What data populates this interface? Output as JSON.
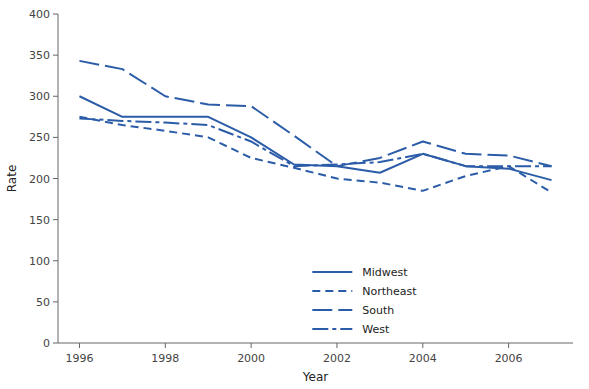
{
  "chart_data": {
    "type": "line",
    "x": [
      1996,
      1997,
      1998,
      1999,
      2000,
      2001,
      2002,
      2003,
      2004,
      2005,
      2006,
      2007
    ],
    "series": [
      {
        "name": "Midwest",
        "color": "#2b5ca8",
        "line_style": "solid",
        "values": [
          300,
          275,
          275,
          275,
          250,
          217,
          215,
          207,
          230,
          215,
          212,
          198
        ]
      },
      {
        "name": "Northeast",
        "color": "#2b5ca8",
        "line_style": "dashed",
        "values": [
          275,
          265,
          258,
          250,
          225,
          213,
          200,
          195,
          185,
          203,
          215,
          183
        ]
      },
      {
        "name": "South",
        "color": "#2b5ca8",
        "line_style": "long-dashed",
        "values": [
          343,
          333,
          300,
          290,
          288,
          252,
          215,
          225,
          245,
          230,
          228,
          215
        ]
      },
      {
        "name": "West",
        "color": "#2b5ca8",
        "line_style": "dash-dot",
        "values": [
          273,
          270,
          268,
          265,
          245,
          215,
          217,
          220,
          230,
          215,
          215,
          215
        ]
      }
    ],
    "xlabel": "Year",
    "ylabel": "Rate",
    "xlim": [
      1995.5,
      2007.5
    ],
    "xticks": [
      1996,
      1998,
      2000,
      2002,
      2004,
      2006
    ],
    "ylim": [
      0,
      400
    ],
    "yticks": [
      0,
      50,
      100,
      150,
      200,
      250,
      300,
      350,
      400
    ],
    "grid": false,
    "legend": "bottom"
  }
}
